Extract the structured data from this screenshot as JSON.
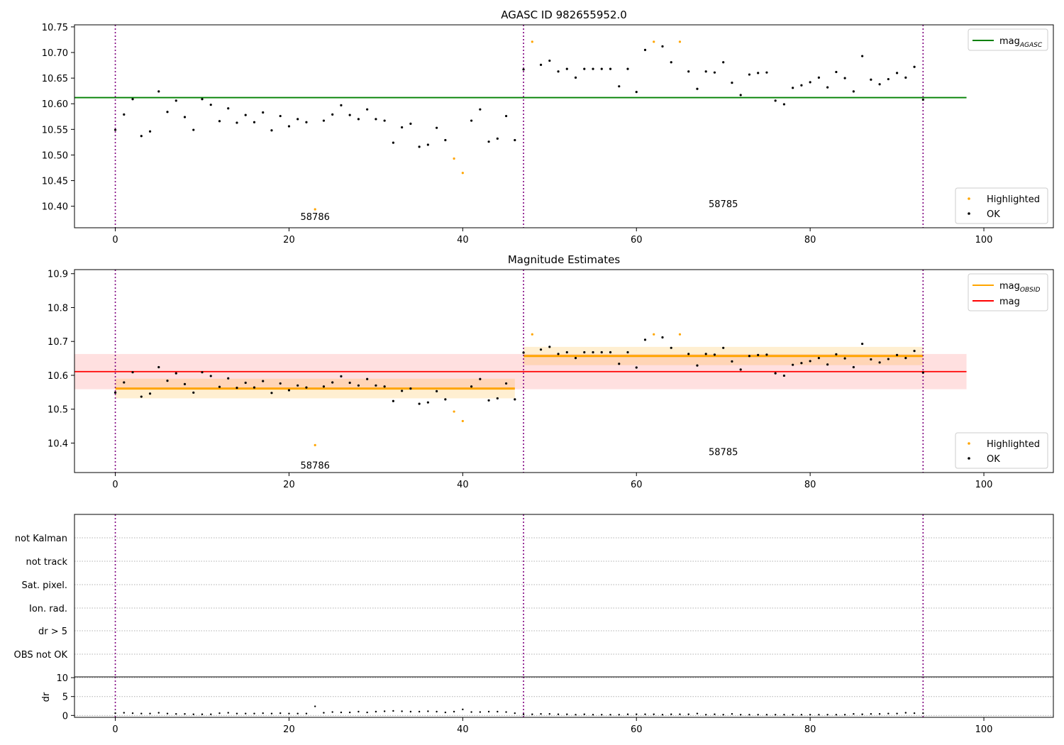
{
  "chart_data": [
    {
      "type": "scatter",
      "title": "AGASC ID 982655952.0",
      "xlabel": "",
      "ylabel": "",
      "xlim": [
        -4.7,
        108
      ],
      "ylim": [
        10.358,
        10.754
      ],
      "xticks": [
        0,
        20,
        40,
        60,
        80,
        100
      ],
      "yticks": [
        10.4,
        10.45,
        10.5,
        10.55,
        10.6,
        10.65,
        10.7,
        10.75
      ],
      "ytick_decimals": 2,
      "vlines": [
        0,
        47,
        93
      ],
      "obsid_labels": [
        {
          "text": "58786",
          "x": 23,
          "y": 10.38
        },
        {
          "text": "58785",
          "x": 70,
          "y": 10.405
        }
      ],
      "mag_agasc": 10.612,
      "hline_xrange": [
        -4.7,
        98
      ],
      "legend_top": {
        "label": "mag",
        "sub": "AGASC",
        "color": "#008000",
        "position": "upper right"
      },
      "legend_bottom": {
        "items": [
          "Highlighted",
          "OK"
        ],
        "position": "lower right"
      },
      "series": [
        {
          "name": "OK",
          "color": "#000000",
          "x": [
            0,
            1,
            2,
            3,
            4,
            5,
            6,
            7,
            8,
            9,
            10,
            11,
            12,
            13,
            14,
            15,
            16,
            17,
            18,
            19,
            20,
            21,
            22,
            24,
            25,
            26,
            27,
            28,
            29,
            30,
            31,
            32,
            33,
            34,
            35,
            36,
            37,
            38,
            41,
            42,
            43,
            44,
            45,
            46,
            47,
            49,
            50,
            51,
            52,
            53,
            54,
            55,
            56,
            57,
            58,
            59,
            60,
            61,
            63,
            64,
            66,
            67,
            68,
            69,
            70,
            71,
            72,
            73,
            74,
            75,
            76,
            77,
            78,
            79,
            80,
            81,
            82,
            83,
            84,
            85,
            86,
            87,
            88,
            89,
            90,
            91,
            92,
            93
          ],
          "y": [
            10.549,
            10.579,
            10.609,
            10.537,
            10.546,
            10.624,
            10.584,
            10.606,
            10.574,
            10.549,
            10.609,
            10.598,
            10.566,
            10.591,
            10.563,
            10.578,
            10.564,
            10.583,
            10.548,
            10.576,
            10.556,
            10.57,
            10.564,
            10.567,
            10.579,
            10.597,
            10.578,
            10.57,
            10.589,
            10.57,
            10.567,
            10.524,
            10.554,
            10.561,
            10.516,
            10.52,
            10.553,
            10.529,
            10.567,
            10.589,
            10.526,
            10.532,
            10.576,
            10.529,
            10.667,
            10.676,
            10.684,
            10.663,
            10.668,
            10.651,
            10.668,
            10.668,
            10.668,
            10.668,
            10.634,
            10.668,
            10.623,
            10.705,
            10.712,
            10.681,
            10.663,
            10.629,
            10.663,
            10.661,
            10.681,
            10.641,
            10.617,
            10.657,
            10.66,
            10.661,
            10.606,
            10.599,
            10.631,
            10.636,
            10.642,
            10.651,
            10.632,
            10.662,
            10.65,
            10.624,
            10.693,
            10.647,
            10.638,
            10.648,
            10.66,
            10.651,
            10.672,
            10.608
          ]
        },
        {
          "name": "Highlighted",
          "color": "#ffa500",
          "x": [
            23,
            39,
            40,
            48,
            62,
            65
          ],
          "y": [
            10.394,
            10.493,
            10.465,
            10.721,
            10.721,
            10.721
          ]
        }
      ]
    },
    {
      "type": "scatter",
      "title": "Magnitude Estimates",
      "xlabel": "",
      "ylabel": "",
      "xlim": [
        -4.7,
        108
      ],
      "ylim": [
        10.313,
        10.912
      ],
      "xticks": [
        0,
        20,
        40,
        60,
        80,
        100
      ],
      "yticks": [
        10.4,
        10.5,
        10.6,
        10.7,
        10.8,
        10.9
      ],
      "ytick_decimals": 1,
      "vlines": [
        0,
        47,
        93
      ],
      "obsid_labels": [
        {
          "text": "58786",
          "x": 23,
          "y": 10.335
        },
        {
          "text": "58785",
          "x": 70,
          "y": 10.375
        }
      ],
      "mag": 10.611,
      "mag_band": [
        10.559,
        10.663
      ],
      "obsid_mags": [
        {
          "x": [
            0,
            46
          ],
          "mag": 10.561,
          "band": [
            10.532,
            10.59
          ]
        },
        {
          "x": [
            47,
            93
          ],
          "mag": 10.657,
          "band": [
            10.63,
            10.684
          ]
        }
      ],
      "hline_xrange": [
        -4.7,
        98
      ],
      "legend_top": {
        "items": [
          {
            "label": "mag",
            "sub": "OBSID",
            "color": "#ffa500"
          },
          {
            "label": "mag",
            "sub": "",
            "color": "#ff0000"
          }
        ],
        "position": "upper right"
      },
      "legend_bottom": {
        "items": [
          "Highlighted",
          "OK"
        ],
        "position": "lower right"
      },
      "series_ref": 0
    },
    {
      "type": "scatter",
      "title": "",
      "xlim": [
        -4.7,
        108
      ],
      "vlines": [
        0,
        47,
        93
      ],
      "flag_labels": [
        "not Kalman",
        "not track",
        "Sat. pixel.",
        "Ion. rad.",
        "dr > 5",
        "OBS not OK"
      ],
      "dr": {
        "ylabel": "dr",
        "yticks": [
          0,
          5,
          10
        ],
        "ylim": [
          -0.5,
          10.2
        ],
        "xticks": [
          0,
          20,
          40,
          60,
          80,
          100
        ],
        "x": [
          0,
          1,
          2,
          3,
          4,
          5,
          6,
          7,
          8,
          9,
          10,
          11,
          12,
          13,
          14,
          15,
          16,
          17,
          18,
          19,
          20,
          21,
          22,
          23,
          24,
          25,
          26,
          27,
          28,
          29,
          30,
          31,
          32,
          33,
          34,
          35,
          36,
          37,
          38,
          39,
          40,
          41,
          42,
          43,
          44,
          45,
          46,
          47,
          48,
          49,
          50,
          51,
          52,
          53,
          54,
          55,
          56,
          57,
          58,
          59,
          60,
          61,
          62,
          63,
          64,
          65,
          66,
          67,
          68,
          69,
          70,
          71,
          72,
          73,
          74,
          75,
          76,
          77,
          78,
          79,
          80,
          81,
          82,
          83,
          84,
          85,
          86,
          87,
          88,
          89,
          90,
          91,
          92,
          93
        ],
        "y": [
          0.6,
          0.7,
          0.6,
          0.5,
          0.5,
          0.7,
          0.5,
          0.4,
          0.4,
          0.3,
          0.3,
          0.3,
          0.6,
          0.7,
          0.5,
          0.5,
          0.5,
          0.6,
          0.5,
          0.6,
          0.5,
          0.5,
          0.5,
          2.4,
          0.7,
          0.9,
          0.8,
          0.8,
          1.0,
          0.8,
          1.0,
          1.1,
          1.2,
          1.1,
          1.0,
          1.0,
          1.1,
          1.0,
          0.8,
          1.0,
          1.6,
          0.9,
          0.9,
          1.0,
          1.0,
          0.9,
          0.6,
          0.3,
          0.3,
          0.4,
          0.4,
          0.3,
          0.3,
          0.2,
          0.3,
          0.2,
          0.2,
          0.2,
          0.2,
          0.3,
          0.3,
          0.3,
          0.3,
          0.2,
          0.3,
          0.3,
          0.3,
          0.5,
          0.2,
          0.3,
          0.2,
          0.4,
          0.2,
          0.2,
          0.2,
          0.2,
          0.2,
          0.2,
          0.2,
          0.2,
          0.2,
          0.2,
          0.2,
          0.2,
          0.2,
          0.4,
          0.3,
          0.4,
          0.4,
          0.5,
          0.5,
          0.7,
          0.6,
          0.6
        ]
      }
    }
  ]
}
